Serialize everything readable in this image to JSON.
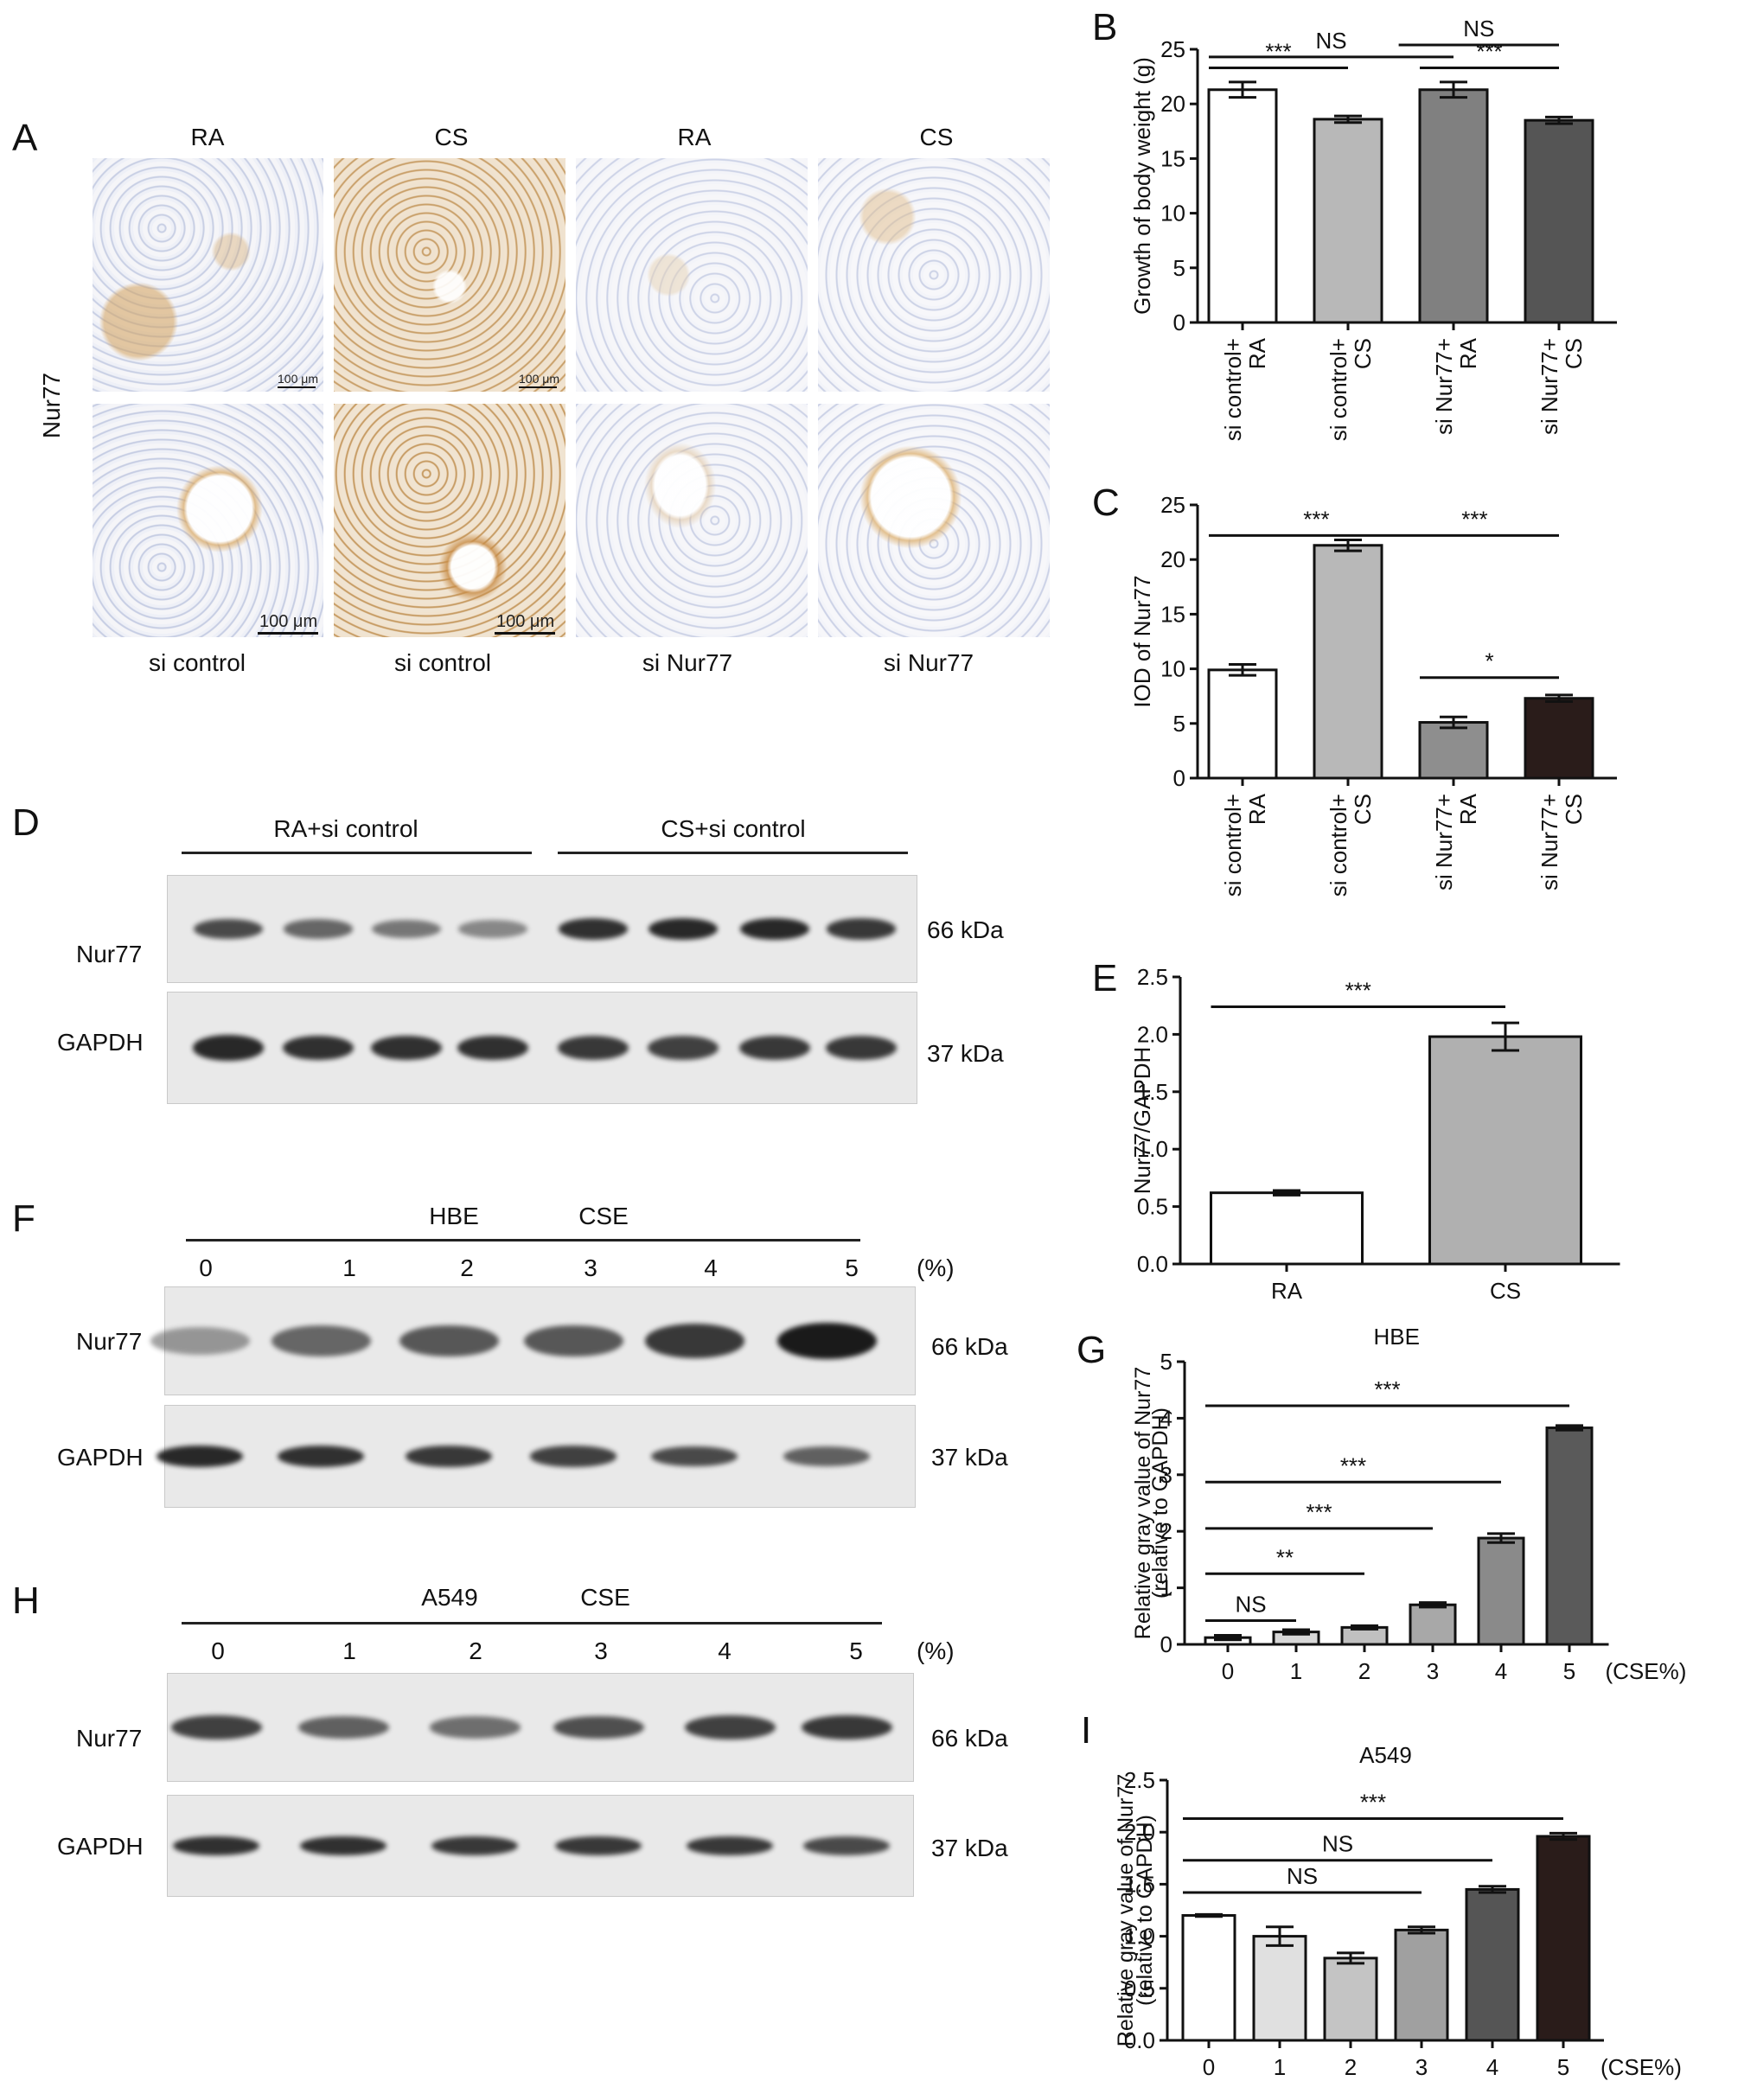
{
  "panel_labels": {
    "A": "A",
    "B": "B",
    "C": "C",
    "D": "D",
    "E": "E",
    "F": "F",
    "G": "G",
    "H": "H",
    "I": "I"
  },
  "panelA": {
    "col_titles": [
      "RA",
      "CS",
      "RA",
      "CS"
    ],
    "col_captions": [
      "si control",
      "si control",
      "si Nur77",
      "si Nur77"
    ],
    "row_label": "Nur77",
    "scalebar_top": "100 μm",
    "scalebar_bottom": "100 μm"
  },
  "blotD": {
    "groups": [
      "RA+si control",
      "CS+si control"
    ],
    "rows": [
      {
        "label": "Nur77",
        "kda": "66 kDa",
        "intensity": [
          0.7,
          0.5,
          0.4,
          0.3,
          0.85,
          0.9,
          0.9,
          0.8
        ]
      },
      {
        "label": "GAPDH",
        "kda": "37 kDa",
        "intensity": [
          0.9,
          0.85,
          0.85,
          0.85,
          0.8,
          0.75,
          0.8,
          0.8
        ]
      }
    ]
  },
  "blotF": {
    "cell": "HBE",
    "treatment": "CSE",
    "lanes": [
      "0",
      "1",
      "2",
      "3",
      "4",
      "5"
    ],
    "unit": "(%)",
    "rows": [
      {
        "label": "Nur77",
        "kda": "66 kDa",
        "intensity": [
          0.2,
          0.5,
          0.6,
          0.6,
          0.8,
          1.0
        ]
      },
      {
        "label": "GAPDH",
        "kda": "37 kDa",
        "intensity": [
          0.9,
          0.85,
          0.8,
          0.75,
          0.7,
          0.55
        ]
      }
    ]
  },
  "blotH": {
    "cell": "A549",
    "treatment": "CSE",
    "lanes": [
      "0",
      "1",
      "2",
      "3",
      "4",
      "5"
    ],
    "unit": "(%)",
    "rows": [
      {
        "label": "Nur77",
        "kda": "66 kDa",
        "intensity": [
          0.75,
          0.55,
          0.45,
          0.65,
          0.75,
          0.8
        ]
      },
      {
        "label": "GAPDH",
        "kda": "37 kDa",
        "intensity": [
          0.85,
          0.85,
          0.8,
          0.8,
          0.8,
          0.7
        ]
      }
    ]
  },
  "chart_data": [
    {
      "id": "B",
      "type": "bar",
      "ylabel": "Growth of body weight (g)",
      "ylim": [
        0,
        25
      ],
      "yticks": [
        0,
        5,
        10,
        15,
        20,
        25
      ],
      "categories": [
        [
          "si control+",
          "RA"
        ],
        [
          "si control+",
          "CS"
        ],
        [
          "si Nur77+",
          "RA"
        ],
        [
          "si Nur77+",
          "CS"
        ]
      ],
      "values": [
        21.3,
        18.6,
        21.3,
        18.5
      ],
      "errors": [
        0.7,
        0.3,
        0.7,
        0.3
      ],
      "colors": [
        "#ffffff",
        "#b8b8b8",
        "#808080",
        "#555555"
      ],
      "sig": [
        {
          "from": 0,
          "to": 1,
          "y": 23.3,
          "label": "***"
        },
        {
          "from": 2,
          "to": 3,
          "y": 23.3,
          "label": "***"
        },
        {
          "from": 0,
          "to": 2,
          "y": 24.3,
          "label": "NS"
        },
        {
          "from": 1.8,
          "to": 3,
          "y": 25.4,
          "label": "NS"
        }
      ]
    },
    {
      "id": "C",
      "type": "bar",
      "ylabel": "IOD of Nur77",
      "ylim": [
        0,
        25
      ],
      "yticks": [
        0,
        5,
        10,
        15,
        20,
        25
      ],
      "categories": [
        [
          "si control+",
          "RA"
        ],
        [
          "si control+",
          "CS"
        ],
        [
          "si Nur77+",
          "RA"
        ],
        [
          "si Nur77+",
          "CS"
        ]
      ],
      "values": [
        9.9,
        21.3,
        5.1,
        7.3
      ],
      "errors": [
        0.5,
        0.5,
        0.5,
        0.3
      ],
      "colors": [
        "#ffffff",
        "#b8b8b8",
        "#8e8e8e",
        "#2a1c1a"
      ],
      "sig": [
        {
          "from": 0,
          "to": 3,
          "y": 22.2,
          "label": "***",
          "label_x": 0.7
        },
        {
          "from": 0,
          "to": 3,
          "y": 22.2,
          "label": "***",
          "label_x": 2.2,
          "hide_line": true
        },
        {
          "from": 2,
          "to": 3,
          "y": 9.2,
          "label": "*"
        }
      ]
    },
    {
      "id": "E",
      "type": "bar",
      "ylabel": "Nur77/GAPDH",
      "ylim": [
        0,
        2.5
      ],
      "yticks": [
        "0.0",
        "0.5",
        "1.0",
        "1.5",
        "2.0",
        "2.5"
      ],
      "categories": [
        [
          "RA"
        ],
        [
          "CS"
        ]
      ],
      "values": [
        0.62,
        1.98
      ],
      "errors": [
        0.02,
        0.12
      ],
      "colors": [
        "#ffffff",
        "#b0b0b0"
      ],
      "sig": [
        {
          "from": 0,
          "to": 1,
          "y": 2.24,
          "label": "***"
        }
      ]
    },
    {
      "id": "G",
      "type": "bar",
      "title": "HBE",
      "ylabel": "Relative gray value of Nur77",
      "ylabel2": "(relative to GAPDH)",
      "ylim": [
        0,
        5
      ],
      "yticks": [
        0,
        1,
        2,
        3,
        4,
        5
      ],
      "categories": [
        [
          "0"
        ],
        [
          "1"
        ],
        [
          "2"
        ],
        [
          "3"
        ],
        [
          "4"
        ],
        [
          "5"
        ]
      ],
      "xunit": "(CSE%)",
      "values": [
        0.12,
        0.22,
        0.3,
        0.7,
        1.88,
        3.83
      ],
      "errors": [
        0.04,
        0.04,
        0.03,
        0.04,
        0.08,
        0.04
      ],
      "colors": [
        "#ffffff",
        "#d8d8d8",
        "#c0c0c0",
        "#a8a8a8",
        "#8a8a8a",
        "#5a5a5a"
      ],
      "sig": [
        {
          "from": 0,
          "to": 1,
          "y": 0.42,
          "label": "NS"
        },
        {
          "from": 0,
          "to": 2,
          "y": 1.25,
          "label": "**"
        },
        {
          "from": 0,
          "to": 3,
          "y": 2.05,
          "label": "***"
        },
        {
          "from": 0,
          "to": 4,
          "y": 2.87,
          "label": "***"
        },
        {
          "from": 0,
          "to": 5,
          "y": 4.22,
          "label": "***"
        }
      ]
    },
    {
      "id": "I",
      "type": "bar",
      "title": "A549",
      "ylabel": "Relative gray value of Nur77",
      "ylabel2": "(relative to GAPDH)",
      "ylim": [
        0,
        2.5
      ],
      "yticks": [
        "0.0",
        "0.5",
        "1.0",
        "1.5",
        "2.0",
        "2.5"
      ],
      "categories": [
        [
          "0"
        ],
        [
          "1"
        ],
        [
          "2"
        ],
        [
          "3"
        ],
        [
          "4"
        ],
        [
          "5"
        ]
      ],
      "xunit": "(CSE%)",
      "values": [
        1.2,
        1.0,
        0.79,
        1.06,
        1.45,
        1.96
      ],
      "errors": [
        0.01,
        0.09,
        0.05,
        0.03,
        0.03,
        0.03
      ],
      "colors": [
        "#ffffff",
        "#e0e0e0",
        "#c4c4c4",
        "#a0a0a0",
        "#555555",
        "#2a1c1a"
      ],
      "sig": [
        {
          "from": 0,
          "to": 3,
          "y": 1.42,
          "label": "NS"
        },
        {
          "from": 0,
          "to": 4,
          "y": 1.73,
          "label": "NS"
        },
        {
          "from": 0,
          "to": 5,
          "y": 2.13,
          "label": "***"
        }
      ]
    }
  ]
}
